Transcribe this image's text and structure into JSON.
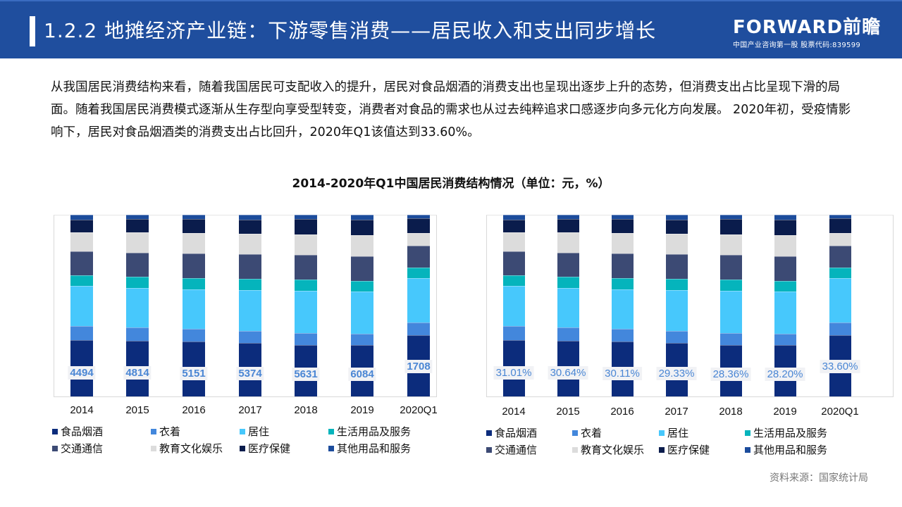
{
  "header": {
    "title": "1.2.2 地摊经济产业链：下游零售消费——居民收入和支出同步增长",
    "logo_brand": "FORWARD前瞻",
    "logo_sub": "中国产业咨询第一股 股票代码:839599"
  },
  "paragraph": "从我国居民消费结构来看，随着我国居民可支配收入的提升，居民对食品烟酒的消费支出也呈现出逐步上升的态势，但消费支出占比呈现下滑的局面。随着我国居民消费模式逐渐从生存型向享受型转变，消费者对食品的需求也从过去纯粹追求口感逐步向多元化方向发展。 2020年初，受疫情影响下，居民对食品烟酒类的消费支出占比回升，2020年Q1该值达到33.60%。",
  "chart_title": "2014-2020年Q1中国居民消费结构情况（单位：元，%）",
  "source": "资料来源：国家统计局",
  "colors": {
    "食品烟酒": "#0c2c7c",
    "衣着": "#4387dc",
    "居住": "#47c8fc",
    "生活用品及服务": "#05b4bc",
    "交通通信": "#3c4a74",
    "教育文化娱乐": "#dcdcdc",
    "医疗保健": "#0a1c4c",
    "其他用品和服务": "#1c4c9c",
    "label_text": "#4a86d4",
    "header_bg": "#1f4e9e"
  },
  "legend": [
    "食品烟酒",
    "衣着",
    "居住",
    "生活用品及服务",
    "交通通信",
    "教育文化娱乐",
    "医疗保健",
    "其他用品和服务"
  ],
  "chart_data": [
    {
      "type": "bar",
      "stacked": true,
      "title": "2014-2020年Q1中国居民消费结构情况（单位：元）",
      "categories": [
        "2014",
        "2015",
        "2016",
        "2017",
        "2018",
        "2019",
        "2020Q1"
      ],
      "data_labels": [
        "4494",
        "4814",
        "5151",
        "5374",
        "5631",
        "6084",
        "1708"
      ],
      "series": [
        {
          "name": "食品烟酒",
          "values": [
            31.0,
            30.6,
            30.1,
            29.3,
            28.4,
            28.2,
            33.6
          ]
        },
        {
          "name": "衣着",
          "values": [
            7.6,
            7.4,
            7.0,
            6.8,
            6.5,
            6.2,
            7.0
          ]
        },
        {
          "name": "居住",
          "values": [
            22.1,
            21.8,
            21.9,
            22.4,
            23.4,
            23.4,
            24.7
          ]
        },
        {
          "name": "生活用品及服务",
          "values": [
            6.1,
            6.1,
            6.1,
            6.1,
            6.2,
            5.9,
            5.6
          ]
        },
        {
          "name": "交通通信",
          "values": [
            12.9,
            13.3,
            13.7,
            13.6,
            13.5,
            13.3,
            12.0
          ]
        },
        {
          "name": "教育文化娱乐",
          "values": [
            10.6,
            11.0,
            11.2,
            11.4,
            11.2,
            11.7,
            7.0
          ]
        },
        {
          "name": "医疗保健",
          "values": [
            7.2,
            7.4,
            7.6,
            7.9,
            8.5,
            8.8,
            8.3
          ]
        },
        {
          "name": "其他用品和服务",
          "values": [
            2.5,
            2.4,
            2.4,
            2.5,
            2.3,
            2.5,
            1.8
          ]
        }
      ],
      "xlabel": "",
      "ylabel": "",
      "ylim": [
        0,
        100
      ],
      "grid": false,
      "legend_position": "bottom"
    },
    {
      "type": "bar",
      "stacked": true,
      "title": "2014-2020年Q1中国居民消费结构情况（单位：%）",
      "categories": [
        "2014",
        "2015",
        "2016",
        "2017",
        "2018",
        "2019",
        "2020Q1"
      ],
      "data_labels": [
        "31.01%",
        "30.64%",
        "30.11%",
        "29.33%",
        "28.36%",
        "28.20%",
        "33.60%"
      ],
      "series": [
        {
          "name": "食品烟酒",
          "values": [
            31.01,
            30.64,
            30.11,
            29.33,
            28.36,
            28.2,
            33.6
          ]
        },
        {
          "name": "衣着",
          "values": [
            7.6,
            7.4,
            7.0,
            6.8,
            6.5,
            6.2,
            7.0
          ]
        },
        {
          "name": "居住",
          "values": [
            22.1,
            21.8,
            21.9,
            22.4,
            23.4,
            23.4,
            24.7
          ]
        },
        {
          "name": "生活用品及服务",
          "values": [
            6.1,
            6.1,
            6.1,
            6.1,
            6.2,
            5.9,
            5.6
          ]
        },
        {
          "name": "交通通信",
          "values": [
            12.9,
            13.3,
            13.7,
            13.6,
            13.5,
            13.3,
            12.0
          ]
        },
        {
          "name": "教育文化娱乐",
          "values": [
            10.6,
            11.0,
            11.2,
            11.4,
            11.2,
            11.7,
            7.0
          ]
        },
        {
          "name": "医疗保健",
          "values": [
            7.2,
            7.4,
            7.6,
            7.9,
            8.5,
            8.8,
            8.3
          ]
        },
        {
          "name": "其他用品和服务",
          "values": [
            2.5,
            2.4,
            2.4,
            2.5,
            2.3,
            2.5,
            1.8
          ]
        }
      ],
      "xlabel": "",
      "ylabel": "",
      "ylim": [
        0,
        100
      ],
      "grid": false,
      "legend_position": "bottom"
    }
  ]
}
